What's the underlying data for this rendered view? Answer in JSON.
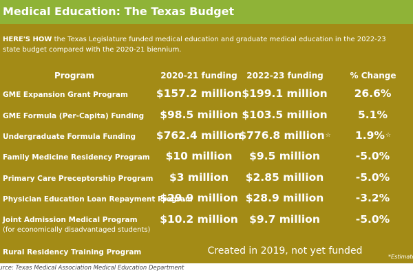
{
  "header": {
    "title": "Medical Education: The Texas Budget"
  },
  "intro": {
    "lead": "HERE'S HOW",
    "text": " the Texas Legislature funded medical education and graduate medical education in the 2022-23 state budget compared with the 2020-21 biennium."
  },
  "columns": {
    "program": "Program",
    "funding_2020": "2020-21 funding",
    "funding_2022": "2022-23 funding",
    "change": "% Change"
  },
  "rows": [
    {
      "label": "GME Expansion Grant Program",
      "sub": "",
      "f2020": "$157.2 million",
      "f2022": "$199.1 million",
      "f2022_mark": "",
      "change": "26.6%",
      "change_mark": ""
    },
    {
      "label": "GME Formula (Per-Capita) Funding",
      "sub": "",
      "f2020": "$98.5 million",
      "f2022": "$103.5 million",
      "f2022_mark": "",
      "change": "5.1%",
      "change_mark": ""
    },
    {
      "label": "Undergraduate Formula Funding",
      "sub": "",
      "f2020": "$762.4 million",
      "f2022": "$776.8 million",
      "f2022_mark": "☆",
      "change": "1.9%",
      "change_mark": "☆"
    },
    {
      "label": "Family Medicine Residency Program",
      "sub": "",
      "f2020": "$10 million",
      "f2022": "$9.5 million",
      "f2022_mark": "",
      "change": "-5.0%",
      "change_mark": ""
    },
    {
      "label": "Primary Care Preceptorship Program",
      "sub": "",
      "f2020": "$3 million",
      "f2022": "$2.85 million",
      "f2022_mark": "",
      "change": "-5.0%",
      "change_mark": ""
    },
    {
      "label": "Physician Education Loan Repayment Program",
      "sub": "",
      "f2020": "$29.9 million",
      "f2022": "$28.9 million",
      "f2022_mark": "",
      "change": "-3.2%",
      "change_mark": ""
    },
    {
      "label": "Joint Admission Medical Program",
      "sub": "(for economically disadvantaged students)",
      "f2020": "$10.2 million",
      "f2022": "$9.7 million",
      "f2022_mark": "",
      "change": "-5.0%",
      "change_mark": ""
    }
  ],
  "last_row": {
    "label": "Rural Residency Training Program",
    "note": "Created in 2019, not yet funded"
  },
  "estimated": "*Estimated",
  "source": "ource: Texas Medical Association Medical Education Department",
  "colors": {
    "header": "#8fb337",
    "panel": "#a38b16"
  }
}
